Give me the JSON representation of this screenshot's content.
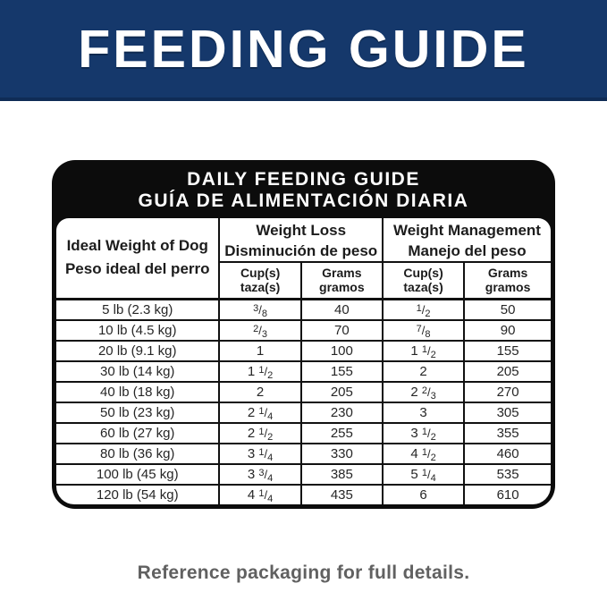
{
  "banner": {
    "title": "FEEDING GUIDE",
    "bg_color": "#15386b",
    "border_color": "#0f2c56",
    "text_color": "#ffffff"
  },
  "card": {
    "title_line1": "DAILY FEEDING GUIDE",
    "title_line2": "GUÍA DE ALIMENTACIÓN DIARIA",
    "bg_color": "#0c0c0c"
  },
  "table": {
    "dog_header": {
      "en": "Ideal Weight of Dog",
      "es": "Peso ideal del perro"
    },
    "groups": [
      {
        "en": "Weight Loss",
        "es": "Disminución de peso"
      },
      {
        "en": "Weight Management",
        "es": "Manejo del peso"
      }
    ],
    "sub_headers": [
      {
        "en": "Cup(s)",
        "es": "taza(s)"
      },
      {
        "en": "Grams",
        "es": "gramos"
      },
      {
        "en": "Cup(s)",
        "es": "taza(s)"
      },
      {
        "en": "Grams",
        "es": "gramos"
      }
    ],
    "rows": [
      {
        "weight": "5 lb (2.3 kg)",
        "loss_cups": "3/8",
        "loss_grams": "40",
        "mgmt_cups": "1/2",
        "mgmt_grams": "50"
      },
      {
        "weight": "10 lb (4.5 kg)",
        "loss_cups": "2/3",
        "loss_grams": "70",
        "mgmt_cups": "7/8",
        "mgmt_grams": "90"
      },
      {
        "weight": "20 lb (9.1 kg)",
        "loss_cups": "1",
        "loss_grams": "100",
        "mgmt_cups": "1 1/2",
        "mgmt_grams": "155"
      },
      {
        "weight": "30 lb (14 kg)",
        "loss_cups": "1 1/2",
        "loss_grams": "155",
        "mgmt_cups": "2",
        "mgmt_grams": "205"
      },
      {
        "weight": "40 lb (18 kg)",
        "loss_cups": "2",
        "loss_grams": "205",
        "mgmt_cups": "2 2/3",
        "mgmt_grams": "270"
      },
      {
        "weight": "50 lb (23 kg)",
        "loss_cups": "2 1/4",
        "loss_grams": "230",
        "mgmt_cups": "3",
        "mgmt_grams": "305"
      },
      {
        "weight": "60 lb (27 kg)",
        "loss_cups": "2 1/2",
        "loss_grams": "255",
        "mgmt_cups": "3 1/2",
        "mgmt_grams": "355"
      },
      {
        "weight": "80 lb (36 kg)",
        "loss_cups": "3 1/4",
        "loss_grams": "330",
        "mgmt_cups": "4 1/2",
        "mgmt_grams": "460"
      },
      {
        "weight": "100 lb (45 kg)",
        "loss_cups": "3 3/4",
        "loss_grams": "385",
        "mgmt_cups": "5 1/4",
        "mgmt_grams": "535"
      },
      {
        "weight": "120 lb (54 kg)",
        "loss_cups": "4 1/4",
        "loss_grams": "435",
        "mgmt_cups": "6",
        "mgmt_grams": "610"
      }
    ]
  },
  "footer": {
    "note": "Reference packaging for full details."
  }
}
